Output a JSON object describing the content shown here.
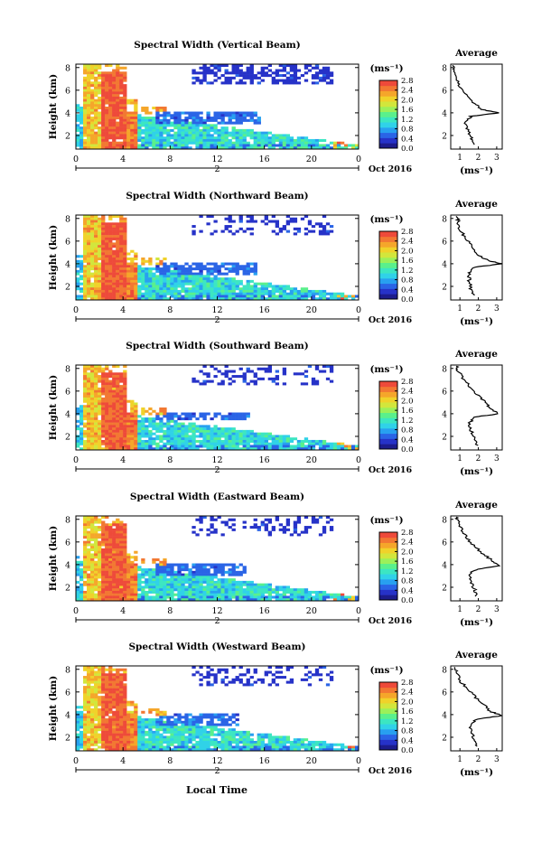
{
  "figure": {
    "x_axis_label": "Local Time",
    "date_label": "Oct 2016",
    "units_label": "(ms⁻¹)",
    "profile_title": "Average",
    "profile_xlabel": "(ms⁻¹)",
    "colors": {
      "colormap": [
        "#1c1c8c",
        "#2632c8",
        "#2a64e6",
        "#28a0f0",
        "#30d2e8",
        "#3ce6c2",
        "#5af08c",
        "#9cf05a",
        "#d2e63c",
        "#f0d22a",
        "#f5a62a",
        "#f27832",
        "#ee4a3a"
      ]
    }
  },
  "chart_data": [
    {
      "type": "heatmap",
      "title": "Spectral Width (Vertical Beam)",
      "ylabel": "Height (km)",
      "xlabel": "Local Time",
      "x_ticks": [
        "0",
        "4",
        "8",
        "12",
        "16",
        "20",
        "0"
      ],
      "x_day_label": "2",
      "x_range": [
        0,
        24
      ],
      "y_ticks": [
        "2",
        "4",
        "6",
        "8"
      ],
      "y_range": [
        0.8,
        8.3
      ],
      "colorbar_ticks": [
        "2.8",
        "2.4",
        "2.0",
        "1.6",
        "1.2",
        "0.8",
        "0.4",
        "0.0"
      ],
      "colorbar_range": [
        0.0,
        2.8
      ],
      "date": "Oct 2016",
      "profile": {
        "title": "Average",
        "x_ticks": [
          "1",
          "2",
          "3"
        ],
        "xlim": [
          0.5,
          3.3
        ],
        "y_ticks": [
          "2",
          "4",
          "6",
          "8"
        ],
        "ylim": [
          0.8,
          8.3
        ],
        "points": [
          [
            1.7,
            1.2
          ],
          [
            1.6,
            1.8
          ],
          [
            1.4,
            2.5
          ],
          [
            1.3,
            3.2
          ],
          [
            1.6,
            3.7
          ],
          [
            3.1,
            4.0
          ],
          [
            2.2,
            4.3
          ],
          [
            1.8,
            4.8
          ],
          [
            1.3,
            5.6
          ],
          [
            1.0,
            6.3
          ],
          [
            0.8,
            7.0
          ],
          [
            0.7,
            7.8
          ],
          [
            0.6,
            8.2
          ]
        ]
      }
    },
    {
      "type": "heatmap",
      "title": "Spectral Width (Northward Beam)",
      "ylabel": "Height (km)",
      "xlabel": "Local Time",
      "x_ticks": [
        "0",
        "4",
        "8",
        "12",
        "16",
        "20",
        "0"
      ],
      "x_day_label": "2",
      "x_range": [
        0,
        24
      ],
      "y_ticks": [
        "2",
        "4",
        "6",
        "8"
      ],
      "y_range": [
        0.8,
        8.3
      ],
      "colorbar_ticks": [
        "2.8",
        "2.4",
        "2.0",
        "1.6",
        "1.2",
        "0.8",
        "0.4",
        "0.0"
      ],
      "colorbar_range": [
        0.0,
        2.8
      ],
      "date": "Oct 2016",
      "profile": {
        "title": "Average",
        "x_ticks": [
          "1",
          "2",
          "3"
        ],
        "xlim": [
          0.5,
          3.3
        ],
        "y_ticks": [
          "2",
          "4",
          "6",
          "8"
        ],
        "ylim": [
          0.8,
          8.3
        ],
        "points": [
          [
            1.8,
            1.2
          ],
          [
            1.6,
            1.8
          ],
          [
            1.5,
            2.5
          ],
          [
            1.5,
            3.2
          ],
          [
            1.8,
            3.7
          ],
          [
            3.3,
            4.0
          ],
          [
            2.5,
            4.3
          ],
          [
            2.0,
            4.8
          ],
          [
            1.6,
            5.6
          ],
          [
            1.3,
            6.3
          ],
          [
            1.0,
            7.0
          ],
          [
            0.9,
            7.8
          ],
          [
            0.8,
            8.2
          ]
        ]
      }
    },
    {
      "type": "heatmap",
      "title": "Spectral Width (Southward Beam)",
      "ylabel": "Height (km)",
      "xlabel": "Local Time",
      "x_ticks": [
        "0",
        "4",
        "8",
        "12",
        "16",
        "20",
        "0"
      ],
      "x_day_label": "2",
      "x_range": [
        0,
        24
      ],
      "y_ticks": [
        "2",
        "4",
        "6",
        "8"
      ],
      "y_range": [
        0.8,
        8.3
      ],
      "colorbar_ticks": [
        "2.8",
        "2.4",
        "2.0",
        "1.6",
        "1.2",
        "0.8",
        "0.4",
        "0.0"
      ],
      "colorbar_range": [
        0.0,
        2.8
      ],
      "date": "Oct 2016",
      "profile": {
        "title": "Average",
        "x_ticks": [
          "1",
          "2",
          "3"
        ],
        "xlim": [
          0.5,
          3.3
        ],
        "y_ticks": [
          "2",
          "4",
          "6",
          "8"
        ],
        "ylim": [
          0.8,
          8.3
        ],
        "points": [
          [
            1.9,
            1.2
          ],
          [
            1.8,
            1.8
          ],
          [
            1.6,
            2.5
          ],
          [
            1.5,
            3.2
          ],
          [
            1.8,
            3.7
          ],
          [
            3.1,
            4.0
          ],
          [
            2.6,
            4.5
          ],
          [
            2.4,
            5.0
          ],
          [
            2.0,
            5.6
          ],
          [
            1.6,
            6.3
          ],
          [
            1.2,
            7.0
          ],
          [
            0.9,
            7.8
          ],
          [
            0.8,
            8.2
          ]
        ]
      }
    },
    {
      "type": "heatmap",
      "title": "Spectral Width (Eastward Beam)",
      "ylabel": "Height (km)",
      "xlabel": "Local Time",
      "x_ticks": [
        "0",
        "4",
        "8",
        "12",
        "16",
        "20",
        "0"
      ],
      "x_day_label": "2",
      "x_range": [
        0,
        24
      ],
      "y_ticks": [
        "2",
        "4",
        "6",
        "8"
      ],
      "y_range": [
        0.8,
        8.3
      ],
      "colorbar_ticks": [
        "2.8",
        "2.4",
        "2.0",
        "1.6",
        "1.2",
        "0.8",
        "0.4",
        "0.0"
      ],
      "colorbar_range": [
        0.0,
        2.8
      ],
      "date": "Oct 2016",
      "profile": {
        "title": "Average",
        "x_ticks": [
          "1",
          "2",
          "3"
        ],
        "xlim": [
          0.5,
          3.3
        ],
        "y_ticks": [
          "2",
          "4",
          "6",
          "8"
        ],
        "ylim": [
          0.8,
          8.3
        ],
        "points": [
          [
            1.9,
            1.2
          ],
          [
            1.8,
            1.8
          ],
          [
            1.6,
            2.5
          ],
          [
            1.5,
            3.2
          ],
          [
            1.9,
            3.6
          ],
          [
            3.2,
            3.9
          ],
          [
            2.8,
            4.3
          ],
          [
            2.3,
            4.9
          ],
          [
            1.8,
            5.6
          ],
          [
            1.4,
            6.3
          ],
          [
            1.1,
            7.0
          ],
          [
            0.9,
            7.8
          ],
          [
            0.8,
            8.2
          ]
        ]
      }
    },
    {
      "type": "heatmap",
      "title": "Spectral Width (Westward Beam)",
      "ylabel": "Height (km)",
      "xlabel": "Local Time",
      "x_ticks": [
        "0",
        "4",
        "8",
        "12",
        "16",
        "20",
        "0"
      ],
      "x_day_label": "2",
      "x_range": [
        0,
        24
      ],
      "y_ticks": [
        "2",
        "4",
        "6",
        "8"
      ],
      "y_range": [
        0.8,
        8.3
      ],
      "colorbar_ticks": [
        "2.8",
        "2.4",
        "2.0",
        "1.6",
        "1.2",
        "0.8",
        "0.4",
        "0.0"
      ],
      "colorbar_range": [
        0.0,
        2.8
      ],
      "date": "Oct 2016",
      "profile": {
        "title": "Average",
        "x_ticks": [
          "1",
          "2",
          "3"
        ],
        "xlim": [
          0.5,
          3.3
        ],
        "y_ticks": [
          "2",
          "4",
          "6",
          "8"
        ],
        "ylim": [
          0.8,
          8.3
        ],
        "points": [
          [
            1.9,
            1.2
          ],
          [
            1.8,
            1.8
          ],
          [
            1.6,
            2.5
          ],
          [
            1.6,
            3.2
          ],
          [
            1.9,
            3.6
          ],
          [
            3.3,
            3.9
          ],
          [
            2.6,
            4.3
          ],
          [
            2.3,
            4.9
          ],
          [
            1.8,
            5.6
          ],
          [
            1.4,
            6.3
          ],
          [
            1.0,
            7.0
          ],
          [
            0.8,
            7.8
          ],
          [
            0.7,
            8.2
          ]
        ]
      }
    }
  ]
}
